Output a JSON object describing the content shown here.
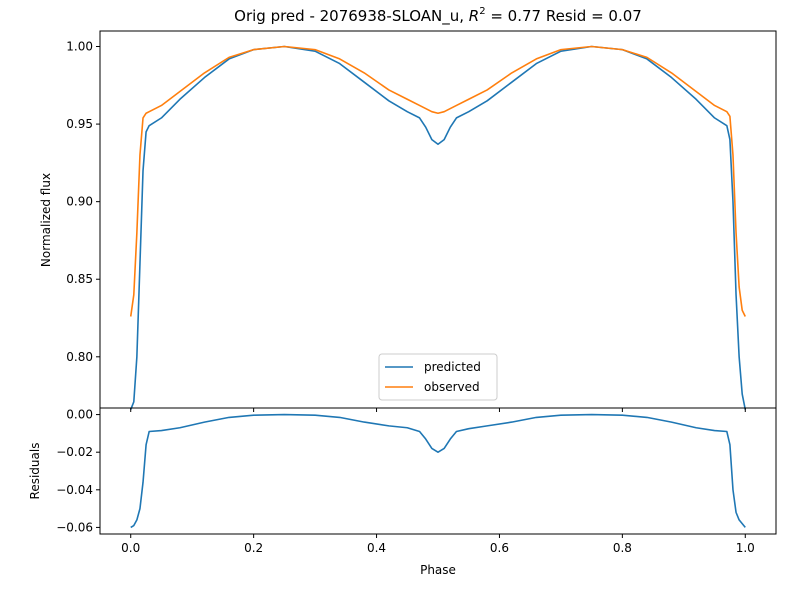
{
  "chart_data": [
    {
      "type": "line",
      "panel": "main",
      "title": {
        "prefix": "Orig pred - 2076938-SLOAN_u, ",
        "r_symbol": "R",
        "r_exp": "2",
        "suffix": " = 0.77 Resid = 0.07"
      },
      "xlabel": "",
      "ylabel": "Normalized flux",
      "xlim": [
        -0.05,
        1.05
      ],
      "ylim": [
        0.767,
        1.01
      ],
      "yticks": [
        0.8,
        0.85,
        0.9,
        0.95,
        1.0
      ],
      "ytick_labels": [
        "0.80",
        "0.85",
        "0.90",
        "0.95",
        "1.00"
      ],
      "xticks": [
        0.0,
        0.2,
        0.4,
        0.6,
        0.8,
        1.0
      ],
      "grid": false,
      "legend": {
        "position": "bottom-center",
        "entries": [
          "predicted",
          "observed"
        ]
      },
      "series": [
        {
          "name": "predicted",
          "color": "#1f77b4",
          "x": [
            0.0,
            0.005,
            0.01,
            0.015,
            0.02,
            0.025,
            0.03,
            0.05,
            0.08,
            0.12,
            0.16,
            0.2,
            0.25,
            0.3,
            0.34,
            0.38,
            0.42,
            0.45,
            0.47,
            0.48,
            0.49,
            0.5,
            0.51,
            0.52,
            0.53,
            0.55,
            0.58,
            0.62,
            0.66,
            0.7,
            0.75,
            0.8,
            0.84,
            0.88,
            0.92,
            0.95,
            0.97,
            0.975,
            0.98,
            0.985,
            0.99,
            0.995,
            1.0
          ],
          "y": [
            0.766,
            0.771,
            0.8,
            0.86,
            0.92,
            0.945,
            0.949,
            0.954,
            0.966,
            0.98,
            0.992,
            0.998,
            1.0,
            0.997,
            0.989,
            0.977,
            0.965,
            0.958,
            0.954,
            0.948,
            0.94,
            0.937,
            0.94,
            0.948,
            0.954,
            0.958,
            0.965,
            0.977,
            0.989,
            0.997,
            1.0,
            0.998,
            0.992,
            0.98,
            0.966,
            0.954,
            0.949,
            0.94,
            0.9,
            0.84,
            0.8,
            0.776,
            0.766
          ]
        },
        {
          "name": "observed",
          "color": "#ff7f0e",
          "x": [
            0.0,
            0.005,
            0.01,
            0.015,
            0.02,
            0.025,
            0.03,
            0.05,
            0.08,
            0.12,
            0.16,
            0.2,
            0.25,
            0.3,
            0.34,
            0.38,
            0.42,
            0.45,
            0.47,
            0.48,
            0.49,
            0.5,
            0.51,
            0.52,
            0.53,
            0.55,
            0.58,
            0.62,
            0.66,
            0.7,
            0.75,
            0.8,
            0.84,
            0.88,
            0.92,
            0.95,
            0.97,
            0.975,
            0.98,
            0.985,
            0.99,
            0.995,
            1.0
          ],
          "y": [
            0.826,
            0.84,
            0.88,
            0.93,
            0.954,
            0.957,
            0.958,
            0.962,
            0.971,
            0.983,
            0.993,
            0.998,
            1.0,
            0.998,
            0.992,
            0.983,
            0.972,
            0.966,
            0.962,
            0.96,
            0.958,
            0.957,
            0.958,
            0.96,
            0.962,
            0.966,
            0.972,
            0.983,
            0.992,
            0.998,
            1.0,
            0.998,
            0.993,
            0.983,
            0.971,
            0.962,
            0.958,
            0.955,
            0.93,
            0.88,
            0.845,
            0.83,
            0.826
          ]
        }
      ]
    },
    {
      "type": "line",
      "panel": "residuals",
      "title": "",
      "xlabel": "Phase",
      "ylabel": "Residuals",
      "xlim": [
        -0.05,
        1.05
      ],
      "ylim": [
        -0.0635,
        0.0035
      ],
      "yticks": [
        0.0,
        -0.02,
        -0.04,
        -0.06
      ],
      "ytick_labels": [
        "0.00",
        "−0.02",
        "−0.04",
        "−0.06"
      ],
      "xticks": [
        0.0,
        0.2,
        0.4,
        0.6,
        0.8,
        1.0
      ],
      "xtick_labels": [
        "0.0",
        "0.2",
        "0.4",
        "0.6",
        "0.8",
        "1.0"
      ],
      "grid": false,
      "series": [
        {
          "color": "#1f77b4",
          "x": [
            0.0,
            0.005,
            0.01,
            0.015,
            0.02,
            0.025,
            0.03,
            0.05,
            0.08,
            0.12,
            0.16,
            0.2,
            0.25,
            0.3,
            0.34,
            0.38,
            0.42,
            0.45,
            0.47,
            0.48,
            0.49,
            0.5,
            0.51,
            0.52,
            0.53,
            0.55,
            0.58,
            0.62,
            0.66,
            0.7,
            0.75,
            0.8,
            0.84,
            0.88,
            0.92,
            0.95,
            0.97,
            0.975,
            0.98,
            0.985,
            0.99,
            0.995,
            1.0
          ],
          "y": [
            -0.06,
            -0.059,
            -0.056,
            -0.05,
            -0.036,
            -0.016,
            -0.009,
            -0.0085,
            -0.007,
            -0.004,
            -0.0015,
            -0.0003,
            0.0,
            -0.0003,
            -0.0015,
            -0.004,
            -0.006,
            -0.007,
            -0.009,
            -0.013,
            -0.018,
            -0.02,
            -0.018,
            -0.013,
            -0.009,
            -0.0075,
            -0.006,
            -0.004,
            -0.0015,
            -0.0003,
            0.0,
            -0.0003,
            -0.0015,
            -0.004,
            -0.007,
            -0.0085,
            -0.009,
            -0.016,
            -0.04,
            -0.052,
            -0.056,
            -0.058,
            -0.06
          ]
        }
      ]
    }
  ]
}
